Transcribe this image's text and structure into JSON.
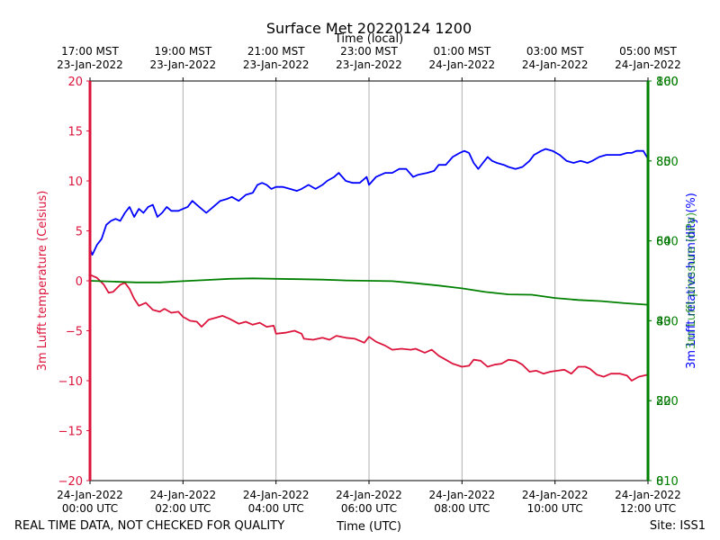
{
  "chart_data": {
    "type": "line",
    "title": "Surface Met 20220124 1200",
    "top_axis_label": "Time (local)",
    "xlabel": "Time (UTC)",
    "ylabel_left": "3m Lufft temperature (Celsius)",
    "ylabel_right_rh": "3m Lufft relative humidity (%)",
    "ylabel_right_pressure": "3m Lufft pressure (hPa)",
    "footer_left": "REAL TIME DATA, NOT CHECKED FOR QUALITY",
    "footer_right": "Site: ISS1",
    "xlim_hours": [
      0,
      12
    ],
    "ylim_temperature": [
      -20,
      20
    ],
    "ylim_rh": [
      0,
      100
    ],
    "ylim_pressure": [
      810,
      860
    ],
    "bottom_ticks": [
      {
        "h": 0,
        "line1": "24-Jan-2022",
        "line2": "00:00 UTC"
      },
      {
        "h": 2,
        "line1": "24-Jan-2022",
        "line2": "02:00 UTC"
      },
      {
        "h": 4,
        "line1": "24-Jan-2022",
        "line2": "04:00 UTC"
      },
      {
        "h": 6,
        "line1": "24-Jan-2022",
        "line2": "06:00 UTC"
      },
      {
        "h": 8,
        "line1": "24-Jan-2022",
        "line2": "08:00 UTC"
      },
      {
        "h": 10,
        "line1": "24-Jan-2022",
        "line2": "10:00 UTC"
      },
      {
        "h": 12,
        "line1": "24-Jan-2022",
        "line2": "12:00 UTC"
      }
    ],
    "top_ticks": [
      {
        "h": 0,
        "line1": "17:00 MST",
        "line2": "23-Jan-2022"
      },
      {
        "h": 2,
        "line1": "19:00 MST",
        "line2": "23-Jan-2022"
      },
      {
        "h": 4,
        "line1": "21:00 MST",
        "line2": "23-Jan-2022"
      },
      {
        "h": 6,
        "line1": "23:00 MST",
        "line2": "23-Jan-2022"
      },
      {
        "h": 8,
        "line1": "01:00 MST",
        "line2": "24-Jan-2022"
      },
      {
        "h": 10,
        "line1": "03:00 MST",
        "line2": "24-Jan-2022"
      },
      {
        "h": 12,
        "line1": "05:00 MST",
        "line2": "24-Jan-2022"
      }
    ],
    "left_ticks": [
      "20",
      "15",
      "10",
      "5",
      "0",
      "−5",
      "−10",
      "−15",
      "−20"
    ],
    "right_ticks_rh": [
      "100",
      "80",
      "60",
      "40",
      "20",
      "0"
    ],
    "right_ticks_pressure": [
      "860",
      "850",
      "840",
      "830",
      "820",
      "810"
    ],
    "colors": {
      "temperature": "#dc143c",
      "humidity": "#0000ff",
      "pressure": "#008000",
      "right_tick_text": "#006400",
      "grid": "#b0b0b0"
    },
    "series": [
      {
        "name": "temperature",
        "axis": "left",
        "points": [
          [
            0,
            0.6
          ],
          [
            0.15,
            0.3
          ],
          [
            0.3,
            -0.4
          ],
          [
            0.4,
            -1.2
          ],
          [
            0.5,
            -1.1
          ],
          [
            0.65,
            -0.4
          ],
          [
            0.75,
            -0.2
          ],
          [
            0.85,
            -0.8
          ],
          [
            0.95,
            -1.8
          ],
          [
            1.05,
            -2.5
          ],
          [
            1.2,
            -2.2
          ],
          [
            1.35,
            -2.9
          ],
          [
            1.5,
            -3.1
          ],
          [
            1.6,
            -2.8
          ],
          [
            1.75,
            -3.2
          ],
          [
            1.9,
            -3.1
          ],
          [
            2.0,
            -3.6
          ],
          [
            2.15,
            -4.0
          ],
          [
            2.3,
            -4.1
          ],
          [
            2.4,
            -4.6
          ],
          [
            2.55,
            -3.9
          ],
          [
            2.7,
            -3.7
          ],
          [
            2.85,
            -3.5
          ],
          [
            3.0,
            -3.8
          ],
          [
            3.2,
            -4.3
          ],
          [
            3.35,
            -4.1
          ],
          [
            3.5,
            -4.4
          ],
          [
            3.65,
            -4.2
          ],
          [
            3.8,
            -4.6
          ],
          [
            3.95,
            -4.5
          ],
          [
            4.0,
            -5.3
          ],
          [
            4.2,
            -5.2
          ],
          [
            4.4,
            -5.0
          ],
          [
            4.55,
            -5.3
          ],
          [
            4.6,
            -5.8
          ],
          [
            4.8,
            -5.9
          ],
          [
            5.0,
            -5.7
          ],
          [
            5.15,
            -5.9
          ],
          [
            5.3,
            -5.5
          ],
          [
            5.5,
            -5.7
          ],
          [
            5.7,
            -5.8
          ],
          [
            5.9,
            -6.2
          ],
          [
            6.0,
            -5.6
          ],
          [
            6.15,
            -6.1
          ],
          [
            6.35,
            -6.5
          ],
          [
            6.5,
            -6.9
          ],
          [
            6.7,
            -6.8
          ],
          [
            6.9,
            -6.9
          ],
          [
            7.0,
            -6.8
          ],
          [
            7.2,
            -7.2
          ],
          [
            7.35,
            -6.9
          ],
          [
            7.5,
            -7.5
          ],
          [
            7.65,
            -7.9
          ],
          [
            7.8,
            -8.3
          ],
          [
            8.0,
            -8.6
          ],
          [
            8.15,
            -8.5
          ],
          [
            8.25,
            -7.9
          ],
          [
            8.4,
            -8.0
          ],
          [
            8.55,
            -8.6
          ],
          [
            8.7,
            -8.4
          ],
          [
            8.85,
            -8.3
          ],
          [
            9.0,
            -7.9
          ],
          [
            9.15,
            -8.0
          ],
          [
            9.3,
            -8.4
          ],
          [
            9.45,
            -9.1
          ],
          [
            9.6,
            -9.0
          ],
          [
            9.75,
            -9.3
          ],
          [
            9.9,
            -9.1
          ],
          [
            10.05,
            -9.0
          ],
          [
            10.2,
            -8.9
          ],
          [
            10.35,
            -9.3
          ],
          [
            10.5,
            -8.6
          ],
          [
            10.65,
            -8.6
          ],
          [
            10.75,
            -8.8
          ],
          [
            10.9,
            -9.4
          ],
          [
            11.05,
            -9.6
          ],
          [
            11.2,
            -9.3
          ],
          [
            11.4,
            -9.3
          ],
          [
            11.55,
            -9.5
          ],
          [
            11.65,
            -10.0
          ],
          [
            11.8,
            -9.6
          ],
          [
            12.0,
            -9.4
          ]
        ]
      },
      {
        "name": "humidity",
        "axis": "right_rh",
        "points": [
          [
            0,
            58
          ],
          [
            0.05,
            56.5
          ],
          [
            0.15,
            59
          ],
          [
            0.25,
            60.5
          ],
          [
            0.35,
            64
          ],
          [
            0.45,
            65
          ],
          [
            0.55,
            65.5
          ],
          [
            0.65,
            65
          ],
          [
            0.75,
            67
          ],
          [
            0.85,
            68.5
          ],
          [
            0.95,
            66
          ],
          [
            1.05,
            68
          ],
          [
            1.15,
            67
          ],
          [
            1.25,
            68.5
          ],
          [
            1.35,
            69
          ],
          [
            1.45,
            66
          ],
          [
            1.55,
            67
          ],
          [
            1.65,
            68.5
          ],
          [
            1.75,
            67.5
          ],
          [
            1.9,
            67.5
          ],
          [
            2.0,
            68
          ],
          [
            2.1,
            68.5
          ],
          [
            2.2,
            70
          ],
          [
            2.35,
            68.5
          ],
          [
            2.5,
            67
          ],
          [
            2.65,
            68.5
          ],
          [
            2.8,
            70
          ],
          [
            2.95,
            70.5
          ],
          [
            3.05,
            71
          ],
          [
            3.2,
            70
          ],
          [
            3.35,
            71.5
          ],
          [
            3.5,
            72
          ],
          [
            3.6,
            74
          ],
          [
            3.7,
            74.5
          ],
          [
            3.8,
            74
          ],
          [
            3.9,
            73
          ],
          [
            4.0,
            73.5
          ],
          [
            4.15,
            73.5
          ],
          [
            4.3,
            73
          ],
          [
            4.45,
            72.5
          ],
          [
            4.55,
            73
          ],
          [
            4.7,
            74
          ],
          [
            4.85,
            73
          ],
          [
            5.0,
            74
          ],
          [
            5.1,
            75
          ],
          [
            5.25,
            76
          ],
          [
            5.35,
            77
          ],
          [
            5.5,
            75
          ],
          [
            5.65,
            74.5
          ],
          [
            5.8,
            74.5
          ],
          [
            5.95,
            76
          ],
          [
            6.0,
            74
          ],
          [
            6.15,
            76
          ],
          [
            6.35,
            77
          ],
          [
            6.5,
            77
          ],
          [
            6.65,
            78
          ],
          [
            6.8,
            78
          ],
          [
            6.95,
            76
          ],
          [
            7.05,
            76.5
          ],
          [
            7.25,
            77
          ],
          [
            7.4,
            77.5
          ],
          [
            7.5,
            79
          ],
          [
            7.65,
            79
          ],
          [
            7.8,
            81
          ],
          [
            7.95,
            82
          ],
          [
            8.05,
            82.5
          ],
          [
            8.15,
            82
          ],
          [
            8.25,
            79.5
          ],
          [
            8.35,
            78
          ],
          [
            8.45,
            79.5
          ],
          [
            8.55,
            81
          ],
          [
            8.65,
            80
          ],
          [
            8.75,
            79.5
          ],
          [
            8.9,
            79
          ],
          [
            9.0,
            78.5
          ],
          [
            9.15,
            78
          ],
          [
            9.3,
            78.5
          ],
          [
            9.45,
            80
          ],
          [
            9.55,
            81.5
          ],
          [
            9.7,
            82.5
          ],
          [
            9.8,
            83
          ],
          [
            9.95,
            82.5
          ],
          [
            10.1,
            81.5
          ],
          [
            10.25,
            80
          ],
          [
            10.4,
            79.5
          ],
          [
            10.55,
            80
          ],
          [
            10.7,
            79.5
          ],
          [
            10.8,
            80
          ],
          [
            10.95,
            81
          ],
          [
            11.1,
            81.5
          ],
          [
            11.25,
            81.5
          ],
          [
            11.4,
            81.5
          ],
          [
            11.55,
            82
          ],
          [
            11.65,
            82
          ],
          [
            11.75,
            82.5
          ],
          [
            11.9,
            82.5
          ],
          [
            12.0,
            80.5
          ]
        ]
      },
      {
        "name": "pressure",
        "axis": "right_pressure",
        "points": [
          [
            0,
            835
          ],
          [
            0.5,
            834.9
          ],
          [
            1.0,
            834.8
          ],
          [
            1.5,
            834.8
          ],
          [
            2.0,
            834.95
          ],
          [
            2.5,
            835.1
          ],
          [
            3.0,
            835.25
          ],
          [
            3.5,
            835.3
          ],
          [
            4.0,
            835.25
          ],
          [
            4.5,
            835.2
          ],
          [
            5.0,
            835.15
          ],
          [
            5.5,
            835.05
          ],
          [
            6.0,
            835.0
          ],
          [
            6.5,
            834.95
          ],
          [
            7.0,
            834.7
          ],
          [
            7.5,
            834.4
          ],
          [
            8.0,
            834.05
          ],
          [
            8.5,
            833.6
          ],
          [
            9.0,
            833.3
          ],
          [
            9.5,
            833.25
          ],
          [
            10.0,
            832.85
          ],
          [
            10.5,
            832.6
          ],
          [
            11.0,
            832.45
          ],
          [
            11.5,
            832.2
          ],
          [
            12.0,
            832.0
          ]
        ]
      }
    ]
  }
}
